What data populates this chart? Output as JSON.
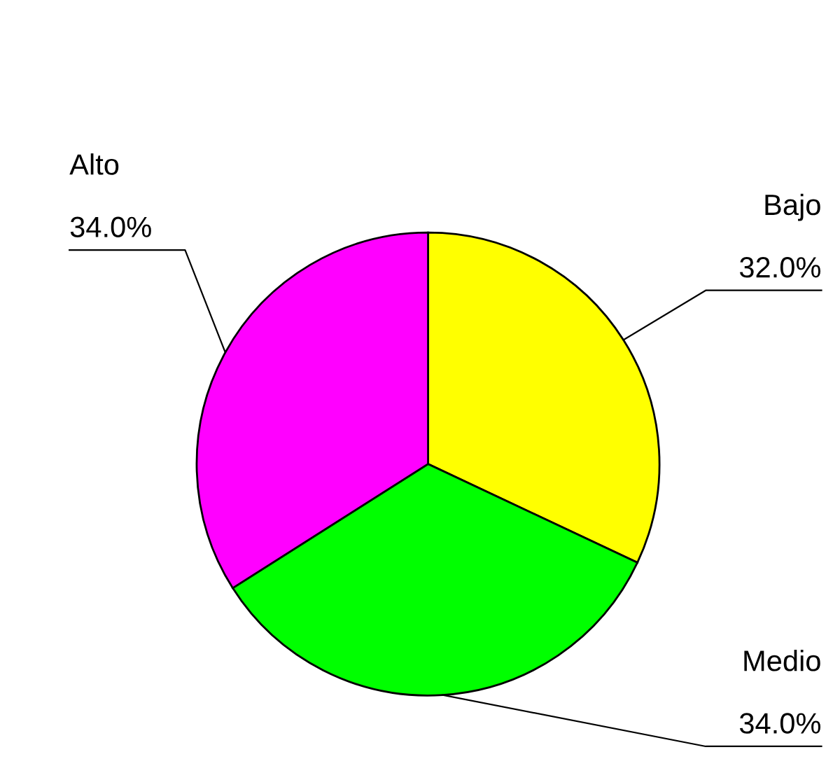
{
  "chart_data": {
    "type": "pie",
    "categories": [
      "Bajo",
      "Medio",
      "Alto"
    ],
    "values": [
      32,
      34,
      34
    ],
    "value_labels": [
      "32.0%",
      "34.0%",
      "34.0%"
    ],
    "colors": [
      "#ffff00",
      "#00ff00",
      "#ff00ff"
    ]
  }
}
